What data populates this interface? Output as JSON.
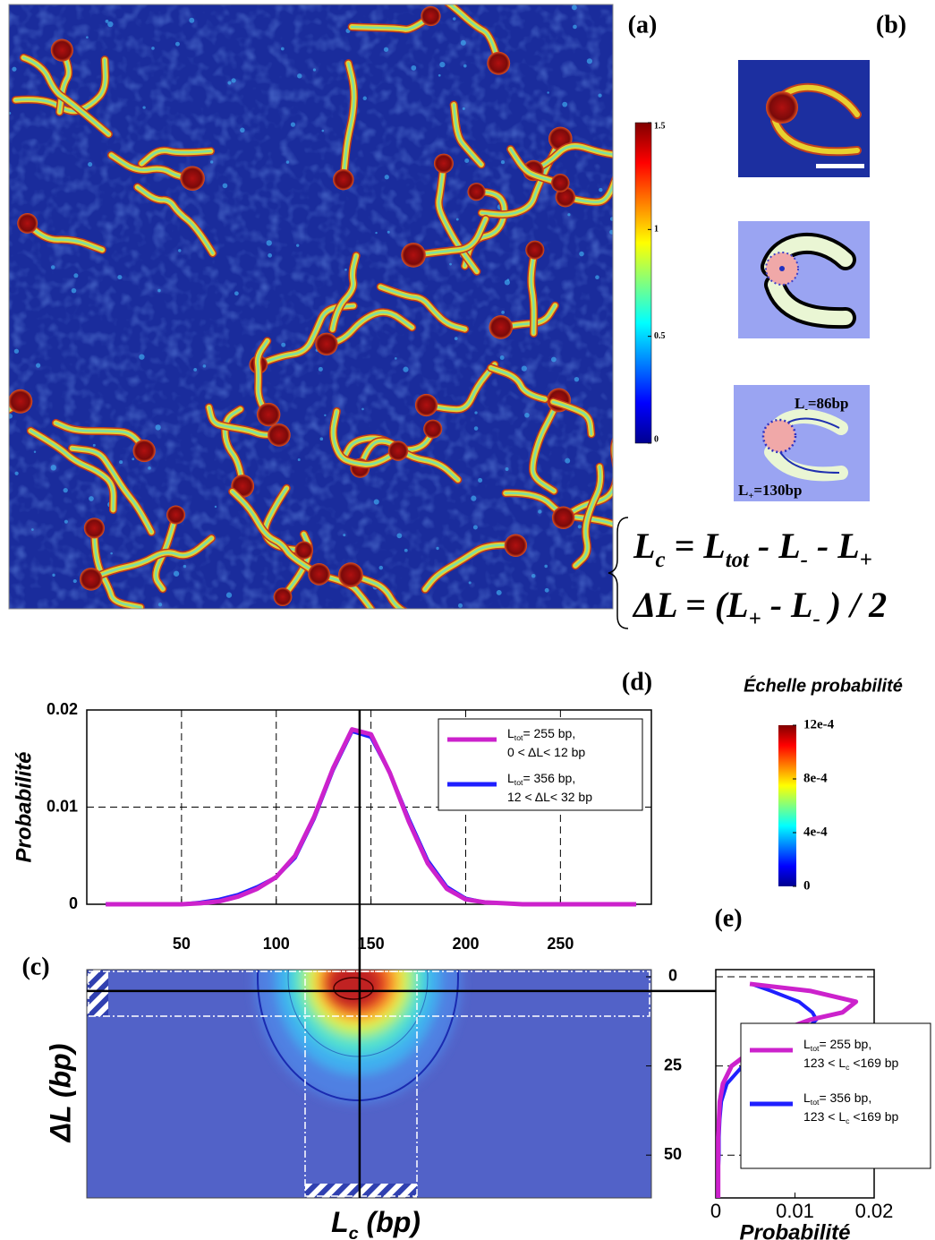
{
  "panel_labels": [
    "(a)",
    "(b)",
    "(c)",
    "(d)",
    "(e)"
  ],
  "afm_colorbar": {
    "lim": [
      0,
      1.5
    ],
    "ticks": [
      0,
      0.5,
      1,
      1.5
    ]
  },
  "inset_labels": [
    [
      "L",
      "-",
      "=86bp"
    ],
    [
      "L",
      "+",
      "=130bp"
    ]
  ],
  "equations": [
    [
      "L",
      "c",
      " = L",
      "tot",
      " - L",
      "-",
      " - L",
      "+"
    ],
    [
      "ΔL = (L",
      "+",
      " - L",
      "-",
      " ) / 2"
    ]
  ],
  "chart_data": [
    {
      "type": "line",
      "ylabel": "Probabilité",
      "xlim": [
        0,
        298
      ],
      "xticks": [
        50,
        100,
        150,
        200,
        250
      ],
      "ylim": [
        0,
        0.02
      ],
      "yticks": [
        0,
        0.01,
        0.02
      ],
      "grid": true,
      "legend": "upper right",
      "x": [
        10,
        20,
        30,
        40,
        50,
        60,
        70,
        80,
        90,
        100,
        110,
        120,
        130,
        140,
        150,
        160,
        170,
        180,
        190,
        200,
        210,
        220,
        230,
        240,
        250,
        260,
        270,
        280,
        290
      ],
      "series": [
        {
          "name": {
            "line1": [
              "L",
              "tot",
              "= 255 bp,"
            ],
            "line2": [
              "0 < ΔL< 12 bp"
            ]
          },
          "color": "#cc22cc",
          "values": [
            0,
            0,
            0,
            0,
            0,
            0.0001,
            0.0003,
            0.0008,
            0.0016,
            0.0028,
            0.005,
            0.009,
            0.014,
            0.018,
            0.0175,
            0.0135,
            0.0085,
            0.0042,
            0.0016,
            0.0005,
            0.0002,
            0.0001,
            0,
            0,
            0,
            0,
            0,
            0,
            0
          ]
        },
        {
          "name": {
            "line1": [
              "L",
              "tot",
              "= 356 bp,"
            ],
            "line2": [
              "12 < ΔL< 32 bp"
            ]
          },
          "color": "#1f1fff",
          "values": [
            0,
            0,
            0,
            0,
            0,
            0.0002,
            0.0005,
            0.001,
            0.0018,
            0.0028,
            0.0048,
            0.0088,
            0.0138,
            0.0178,
            0.0172,
            0.0135,
            0.0088,
            0.0045,
            0.0018,
            0.0006,
            0.0002,
            0.0001,
            0,
            0,
            0,
            0,
            0,
            0,
            0
          ]
        }
      ]
    },
    {
      "type": "heatmap",
      "xlabel": [
        "L",
        "c",
        " (bp)"
      ],
      "ylabel": "ΔL (bp)",
      "xlim": [
        0,
        298
      ],
      "ylim": [
        -2,
        62
      ],
      "y_inverted": true,
      "yticks": [
        0,
        25,
        50
      ],
      "crosshair": {
        "x": 144,
        "y": 4
      },
      "colorbar": {
        "title": "Échelle probabilité",
        "lim": [
          0,
          0.0012
        ],
        "ticks": [
          0,
          {
            "value": 0.0004,
            "label": "4e-4"
          },
          {
            "value": 0.0008,
            "label": "8e-4"
          },
          {
            "value": 0.0012,
            "label": "12e-4"
          }
        ]
      }
    },
    {
      "type": "line",
      "xlabel": "Probabilité",
      "xlim": [
        0,
        0.02
      ],
      "xticks": [
        0,
        0.01,
        0.02
      ],
      "ylim": [
        -2,
        62
      ],
      "y_inverted": true,
      "grid": true,
      "legend": "lower right",
      "y": [
        2,
        4,
        7,
        10,
        12,
        14,
        17,
        20,
        25,
        30,
        35,
        40,
        45,
        50,
        55,
        60,
        62
      ],
      "series": [
        {
          "name": {
            "line1": [
              "L",
              "tot",
              "= 255 bp,"
            ],
            "line2": [
              "123 < L",
              "c",
              " <169 bp"
            ]
          },
          "color": "#cc22cc",
          "values": [
            0.0043,
            0.012,
            0.0177,
            0.016,
            0.012,
            0.0095,
            0.0068,
            0.005,
            0.002,
            0.0009,
            0.0005,
            0.0004,
            0.0003,
            0.0003,
            0.0003,
            0.0003,
            0.0003
          ]
        },
        {
          "name": {
            "line1": [
              "L",
              "tot",
              "= 356 bp,"
            ],
            "line2": [
              "123 < L",
              "c",
              " <169 bp"
            ]
          },
          "color": "#1f1fff",
          "values": [
            0.0045,
            0.007,
            0.0105,
            0.0122,
            0.0127,
            0.0118,
            0.0095,
            0.007,
            0.0034,
            0.0014,
            0.0007,
            0.0005,
            0.0004,
            0.0004,
            0.0003,
            0.0003,
            0.0003
          ]
        }
      ]
    }
  ]
}
